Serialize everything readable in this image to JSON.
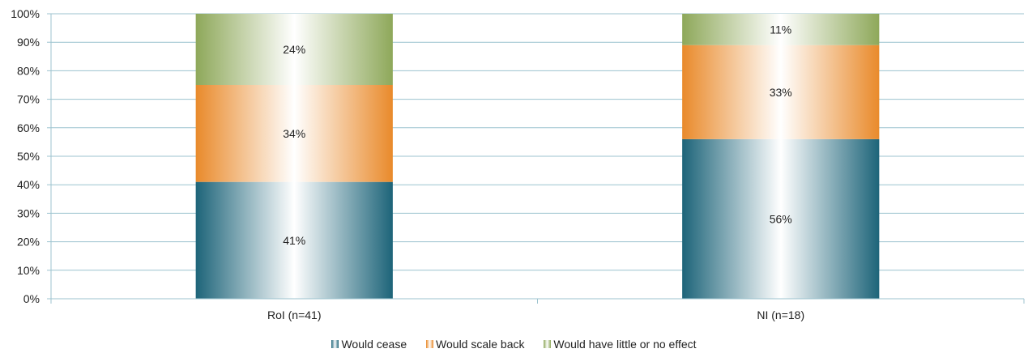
{
  "chart_data": {
    "type": "bar",
    "stacked": true,
    "percent": true,
    "categories": [
      "RoI (n=41)",
      "NI (n=18)"
    ],
    "series": [
      {
        "name": "Would cease",
        "values": [
          41,
          56
        ],
        "labels": [
          "41%",
          "56%"
        ],
        "color": "#1d6479"
      },
      {
        "name": "Would scale back",
        "values": [
          34,
          33
        ],
        "labels": [
          "34%",
          "33%"
        ],
        "color": "#e98a2b"
      },
      {
        "name": "Would have little or no effect",
        "values": [
          24,
          11
        ],
        "labels": [
          "24%",
          "11%"
        ],
        "color": "#8ea85a"
      }
    ],
    "ylim": [
      0,
      100
    ],
    "yticks": [
      "0%",
      "10%",
      "20%",
      "30%",
      "40%",
      "50%",
      "60%",
      "70%",
      "80%",
      "90%",
      "100%"
    ],
    "grid": true,
    "legend_position": "bottom"
  }
}
